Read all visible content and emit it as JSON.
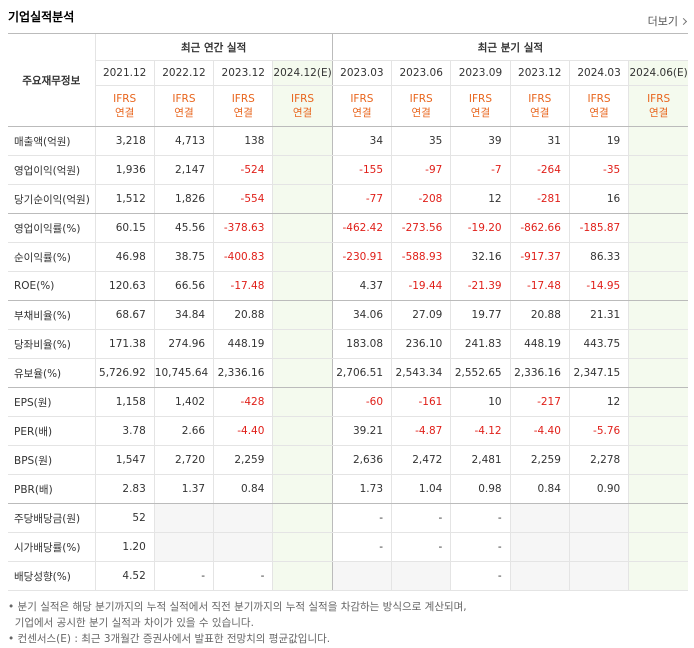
{
  "header": {
    "title": "기업실적분석",
    "more": "더보기"
  },
  "table": {
    "corner": "주요재무정보",
    "groups": [
      {
        "label": "최근 연간 실적",
        "span": 4
      },
      {
        "label": "최근 분기 실적",
        "span": 6
      }
    ],
    "periods": [
      "2021.12",
      "2022.12",
      "2023.12",
      "2024.12(E)",
      "2023.03",
      "2023.06",
      "2023.09",
      "2023.12",
      "2024.03",
      "2024.06(E)"
    ],
    "estimate_columns": [
      3,
      9
    ],
    "basis": [
      [
        "IFRS",
        "연결"
      ],
      [
        "IFRS",
        "연결"
      ],
      [
        "IFRS",
        "연결"
      ],
      [
        "IFRS",
        "연결"
      ],
      [
        "IFRS",
        "연결"
      ],
      [
        "IFRS",
        "연결"
      ],
      [
        "IFRS",
        "연결"
      ],
      [
        "IFRS",
        "연결"
      ],
      [
        "IFRS",
        "연결"
      ],
      [
        "IFRS",
        "연결"
      ]
    ],
    "rows": [
      {
        "label": "매출액(억원)",
        "values": [
          "3,218",
          "4,713",
          "138",
          null,
          "34",
          "35",
          "39",
          "31",
          "19",
          null
        ]
      },
      {
        "label": "영업이익(억원)",
        "values": [
          "1,936",
          "2,147",
          "-524",
          null,
          "-155",
          "-97",
          "-7",
          "-264",
          "-35",
          null
        ]
      },
      {
        "label": "당기순이익(억원)",
        "values": [
          "1,512",
          "1,826",
          "-554",
          null,
          "-77",
          "-208",
          "12",
          "-281",
          "16",
          null
        ]
      },
      {
        "label": "영업이익률(%)",
        "values": [
          "60.15",
          "45.56",
          "-378.63",
          null,
          "-462.42",
          "-273.56",
          "-19.20",
          "-862.66",
          "-185.87",
          null
        ]
      },
      {
        "label": "순이익률(%)",
        "values": [
          "46.98",
          "38.75",
          "-400.83",
          null,
          "-230.91",
          "-588.93",
          "32.16",
          "-917.37",
          "86.33",
          null
        ]
      },
      {
        "label": "ROE(%)",
        "values": [
          "120.63",
          "66.56",
          "-17.48",
          null,
          "4.37",
          "-19.44",
          "-21.39",
          "-17.48",
          "-14.95",
          null
        ]
      },
      {
        "label": "부채비율(%)",
        "values": [
          "68.67",
          "34.84",
          "20.88",
          null,
          "34.06",
          "27.09",
          "19.77",
          "20.88",
          "21.31",
          null
        ]
      },
      {
        "label": "당좌비율(%)",
        "values": [
          "171.38",
          "274.96",
          "448.19",
          null,
          "183.08",
          "236.10",
          "241.83",
          "448.19",
          "443.75",
          null
        ]
      },
      {
        "label": "유보율(%)",
        "values": [
          "5,726.92",
          "10,745.64",
          "2,336.16",
          null,
          "2,706.51",
          "2,543.34",
          "2,552.65",
          "2,336.16",
          "2,347.15",
          null
        ]
      },
      {
        "label": "EPS(원)",
        "values": [
          "1,158",
          "1,402",
          "-428",
          null,
          "-60",
          "-161",
          "10",
          "-217",
          "12",
          null
        ]
      },
      {
        "label": "PER(배)",
        "values": [
          "3.78",
          "2.66",
          "-4.40",
          null,
          "39.21",
          "-4.87",
          "-4.12",
          "-4.40",
          "-5.76",
          null
        ]
      },
      {
        "label": "BPS(원)",
        "values": [
          "1,547",
          "2,720",
          "2,259",
          null,
          "2,636",
          "2,472",
          "2,481",
          "2,259",
          "2,278",
          null
        ]
      },
      {
        "label": "PBR(배)",
        "values": [
          "2.83",
          "1.37",
          "0.84",
          null,
          "1.73",
          "1.04",
          "0.98",
          "0.84",
          "0.90",
          null
        ]
      },
      {
        "label": "주당배당금(원)",
        "values": [
          "52",
          null,
          null,
          null,
          "-",
          "-",
          "-",
          null,
          null,
          null
        ]
      },
      {
        "label": "시가배당률(%)",
        "values": [
          "1.20",
          null,
          null,
          null,
          "-",
          "-",
          "-",
          null,
          null,
          null
        ]
      },
      {
        "label": "배당성향(%)",
        "values": [
          "4.52",
          "-",
          "-",
          null,
          null,
          null,
          "-",
          null,
          null,
          null
        ]
      }
    ],
    "row_group_ends": [
      2,
      5,
      8,
      12
    ]
  },
  "notes": [
    "분기 실적은 해당 분기까지의 누적 실적에서 직전 분기까지의 누적 실적을 차감하는 방식으로 계산되며,",
    "기업에서 공시한 분기 실적과 차이가 있을 수 있습니다.",
    "컨센서스(E) : 최근 3개월간 증권사에서 발표한 전망치의 평균값입니다."
  ]
}
